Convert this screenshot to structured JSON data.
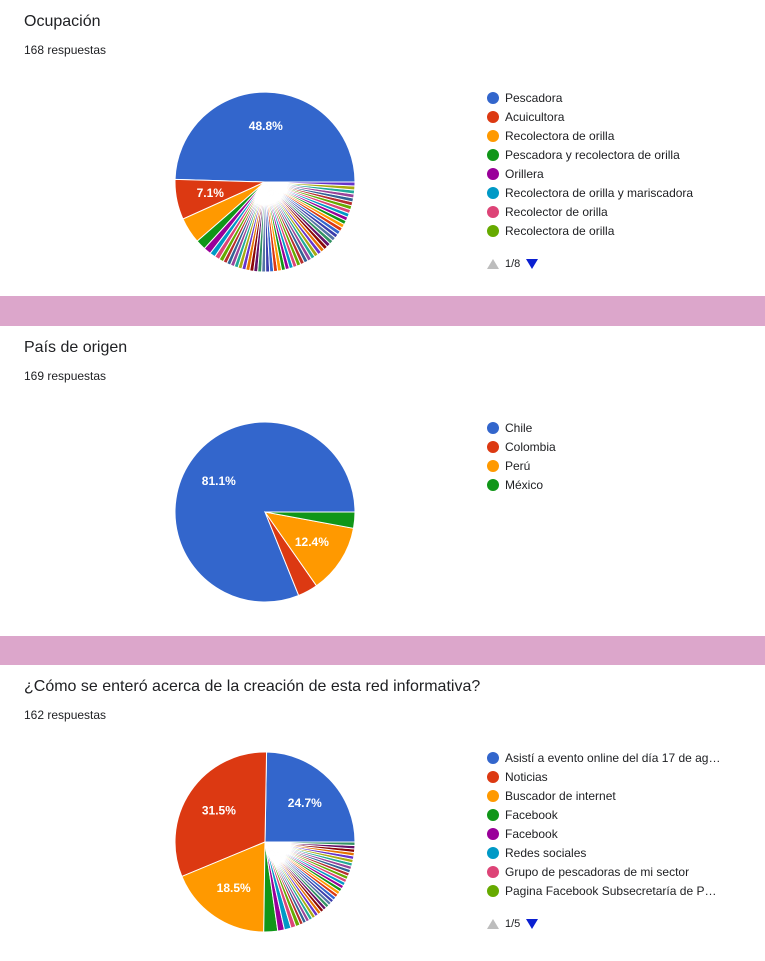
{
  "palette": [
    "#3366cc",
    "#dc3912",
    "#ff9900",
    "#109618",
    "#990099",
    "#0099c6",
    "#dd4477",
    "#66aa00",
    "#b82e2e",
    "#316395",
    "#994499",
    "#22aa99",
    "#aaaa11",
    "#6633cc",
    "#e67300",
    "#8b0707",
    "#651067",
    "#329262",
    "#5574a6",
    "#3b3eac"
  ],
  "charts": [
    {
      "title": "Ocupación",
      "responses": "168 respuestas",
      "pager": "1/8",
      "chart_data": {
        "type": "pie",
        "slices": [
          {
            "label": "Pescadora",
            "value": 48.8,
            "text": "48.8%"
          },
          {
            "label": "Acuicultora",
            "value": 7.1,
            "text": "7.1%"
          },
          {
            "label": "Recolectora de orilla",
            "value": 4.6
          },
          {
            "label": "Pescadora y recolectora de orilla",
            "value": 1.8
          },
          {
            "label": "Orillera",
            "value": 1.3
          },
          {
            "label": "Recolectora de orilla y mariscadora",
            "value": 1.0
          },
          {
            "label": "Recolector de orilla",
            "value": 0.9
          },
          {
            "label": "Recolectora de orilla",
            "value": 0.8
          }
        ],
        "other_slices": {
          "count": 46,
          "value_each": 0.7
        }
      }
    },
    {
      "title": "País de origen",
      "responses": "169 respuestas",
      "chart_data": {
        "type": "pie",
        "slices": [
          {
            "label": "Chile",
            "value": 81.1,
            "text": "81.1%"
          },
          {
            "label": "Colombia",
            "value": 3.6
          },
          {
            "label": "Perú",
            "value": 12.4,
            "text": "12.4%"
          },
          {
            "label": "México",
            "value": 2.9
          }
        ]
      }
    },
    {
      "title": "¿Cómo se enteró acerca de la creación de esta red informativa?",
      "responses": "162 respuestas",
      "pager": "1/5",
      "chart_data": {
        "type": "pie",
        "slices": [
          {
            "label": "Asistí a evento online del día 17 de ag…",
            "value": 24.7,
            "text": "24.7%"
          },
          {
            "label": "Noticias",
            "value": 31.5,
            "text": "31.5%"
          },
          {
            "label": "Buscador de internet",
            "value": 18.5,
            "text": "18.5%"
          },
          {
            "label": "Facebook",
            "value": 2.5
          },
          {
            "label": "Facebook",
            "value": 1.2
          },
          {
            "label": "Redes sociales",
            "value": 1.2
          },
          {
            "label": "Grupo de pescadoras de mi sector",
            "value": 0.9
          },
          {
            "label": "Pagina Facebook Subsecretaría de P…",
            "value": 0.8
          }
        ],
        "other_slices": {
          "count": 30,
          "value_each": 0.62
        }
      }
    }
  ]
}
